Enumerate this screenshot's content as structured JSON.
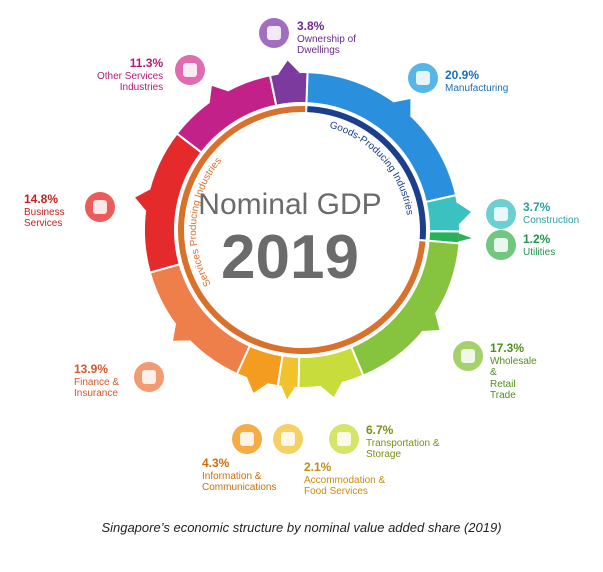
{
  "chart_data": {
    "type": "pie",
    "variant": "donut",
    "center_title": "Nominal GDP",
    "center_year": "2019",
    "caption": "Singapore’s economic structure by nominal value added share (2019)",
    "groups": [
      {
        "name": "Goods-Producing Industries",
        "color": "#1b3f8c"
      },
      {
        "name": "Services Producing Industries",
        "color": "#d9702b"
      }
    ],
    "slices": [
      {
        "label": "Manufacturing",
        "value": 20.9,
        "pct_label": "20.9%",
        "color": "#2a8fdc",
        "icon": "factory-icon",
        "group": "goods"
      },
      {
        "label": "Construction",
        "value": 3.7,
        "pct_label": "3.7%",
        "color": "#3cc1c1",
        "icon": "construction-icon",
        "group": "goods"
      },
      {
        "label": "Utilities",
        "value": 1.2,
        "pct_label": "1.2%",
        "color": "#2bb05a",
        "icon": "lightbulb-icon",
        "group": "goods"
      },
      {
        "label": "Wholesale & Retail Trade",
        "value": 17.3,
        "pct_label": "17.3%",
        "color": "#86c440",
        "icon": "cart-icon",
        "group": "services"
      },
      {
        "label": "Transportation & Storage",
        "value": 6.7,
        "pct_label": "6.7%",
        "color": "#c8dc3c",
        "icon": "truck-icon",
        "group": "services"
      },
      {
        "label": "Accommodation & Food Services",
        "value": 2.1,
        "pct_label": "2.1%",
        "color": "#f2c12e",
        "icon": "restaurant-icon",
        "group": "services"
      },
      {
        "label": "Information & Communications",
        "value": 4.3,
        "pct_label": "4.3%",
        "color": "#f39c1f",
        "icon": "tablet-icon",
        "group": "services"
      },
      {
        "label": "Finance & Insurance",
        "value": 13.9,
        "pct_label": "13.9%",
        "color": "#ef7f4a",
        "icon": "umbrella-icon",
        "group": "services"
      },
      {
        "label": "Business Services",
        "value": 14.8,
        "pct_label": "14.8%",
        "color": "#e42a2a",
        "icon": "businessman-icon",
        "group": "services"
      },
      {
        "label": "Other Services Industries",
        "value": 11.3,
        "pct_label": "11.3%",
        "color": "#c3218a",
        "icon": "tools-icon",
        "group": "services"
      },
      {
        "label": "Ownership of Dwellings",
        "value": 3.8,
        "pct_label": "3.8%",
        "color": "#7d3a9e",
        "icon": "building-icon",
        "group": "services"
      }
    ]
  },
  "labels": [
    {
      "pct": "20.9%",
      "name": "Manufacturing"
    },
    {
      "pct": "3.7%",
      "name": "Construction"
    },
    {
      "pct": "1.2%",
      "name": "Utilities"
    },
    {
      "pct": "17.3%",
      "name": "Wholesale\n&\nRetail\nTrade"
    },
    {
      "pct": "6.7%",
      "name": "Transportation &\nStorage"
    },
    {
      "pct": "2.1%",
      "name": "Accommodation &\nFood Services"
    },
    {
      "pct": "4.3%",
      "name": "Information &\nCommunications"
    },
    {
      "pct": "13.9%",
      "name": "Finance &\nInsurance"
    },
    {
      "pct": "14.8%",
      "name": "Business\nServices"
    },
    {
      "pct": "11.3%",
      "name": "Other Services\nIndustries"
    },
    {
      "pct": "3.8%",
      "name": "Ownership of\nDwellings"
    }
  ]
}
